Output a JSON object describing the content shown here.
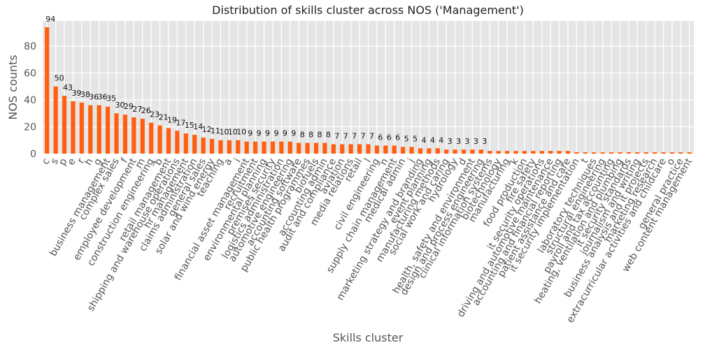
{
  "chart_data": {
    "type": "bar",
    "title": "Distribution of skills cluster across NOS ('Management')",
    "x_label": "Skills cluster",
    "y_label": "NOS counts",
    "color": "#ff5f0f",
    "grid": true,
    "ylim": [
      0,
      98.7
    ],
    "yticks": [
      0,
      20,
      40,
      60,
      80
    ],
    "categories": [
      "c",
      "s",
      "p",
      "e",
      "r",
      "h",
      "g",
      "business management",
      "complex sales",
      "f",
      "employee development",
      "m",
      "construction engineering",
      "b",
      "retail management",
      "shipping and warehouse operations",
      "hr management",
      "claims administration",
      "general sales",
      "solar and wind energy",
      "teaching",
      "a",
      "i",
      "financial asset management",
      "recruitment",
      "environmental planning",
      "premises security",
      "logistics administration",
      "automotive engineering",
      "accounting software",
      "public health programmes",
      "biofuels",
      "accounting admin",
      "audit and compliance",
      "aviation",
      "media relations",
      "retail",
      "l",
      "civil engineering",
      "n",
      "supply chain management",
      "medical admin",
      "j",
      "marketing strategy and branding",
      "event planning",
      "manufacturing methods",
      "social work and caring",
      "hydrology",
      "d",
      "health, safety and environment",
      "design and process engineering",
      "clinical information systems",
      "biotechnology",
      "manufacturing",
      "k",
      "food production",
      "fire safety",
      "it security operations",
      "driving and automotive maintenance",
      "accounting and financial reporting",
      "patient assistance and care",
      "it security implementation",
      "t",
      "laboratory techniques",
      "structural engineering",
      "payroll and tax accounting",
      "heating, ventilation and plumbing",
      "it security standards",
      "journalism and writing",
      "business analysis and it projects",
      "marketing research",
      "extracurricular activities and childcare",
      "o",
      "general practice",
      "web content management"
    ],
    "values": [
      94,
      50,
      43,
      39,
      38,
      36,
      36,
      35,
      30,
      29,
      27,
      26,
      23,
      21,
      19,
      17,
      15,
      14,
      12,
      11,
      10,
      10,
      10,
      9,
      9,
      9,
      9,
      9,
      9,
      8,
      8,
      8,
      8,
      7,
      7,
      7,
      7,
      7,
      6,
      6,
      6,
      5,
      5,
      4,
      4,
      4,
      3,
      3,
      3,
      3,
      3,
      2,
      2,
      2,
      2,
      2,
      2,
      2,
      2,
      2,
      2,
      1,
      1,
      1,
      1,
      1,
      1,
      1,
      1,
      1,
      1,
      1,
      1,
      1,
      1
    ],
    "value_labels": [
      "94",
      "50",
      "43",
      "39",
      "38",
      "36",
      "36",
      "35",
      "30",
      "29",
      "27",
      "26",
      "23",
      "21",
      "19",
      "17",
      "15",
      "14",
      "12",
      "11",
      "10",
      "10",
      "10",
      "9",
      "9",
      "9",
      "9",
      "9",
      "9",
      "8",
      "8",
      "8",
      "8",
      "7",
      "7",
      "7",
      "7",
      "7",
      "6",
      "6",
      "6",
      "5",
      "5",
      "4",
      "4",
      "4",
      "3",
      "3",
      "3",
      "3",
      "3",
      null,
      null,
      null,
      null,
      null,
      null,
      null,
      null,
      null,
      null,
      null,
      null,
      null,
      null,
      null,
      null,
      null,
      null,
      null,
      null,
      null,
      null,
      null,
      null
    ]
  }
}
